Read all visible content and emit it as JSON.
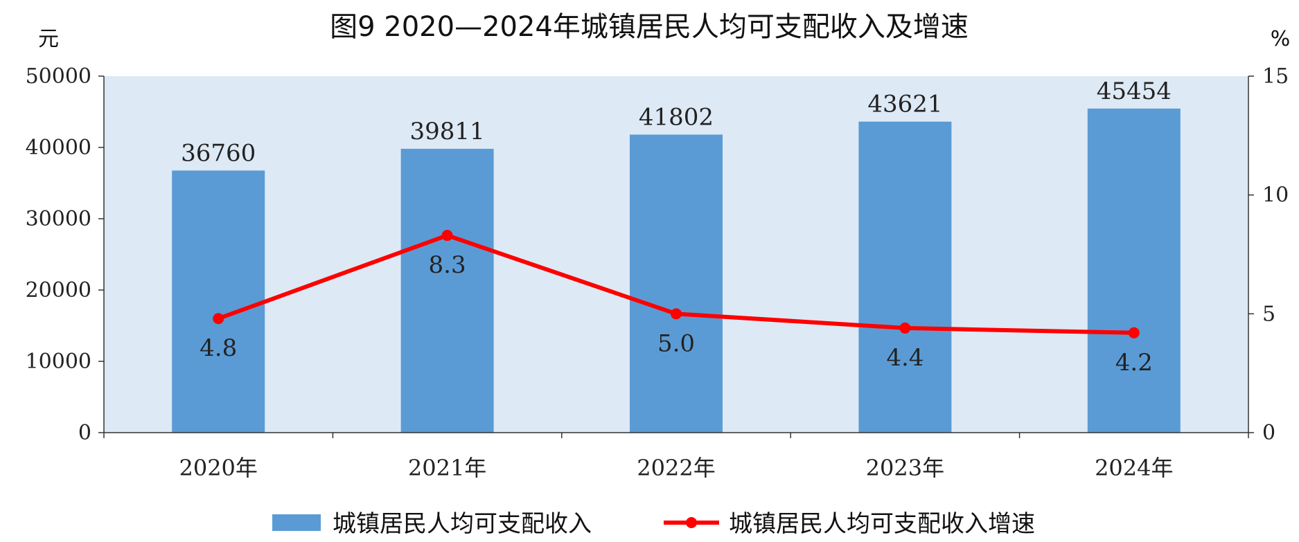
{
  "chart_data": {
    "type": "bar",
    "title": "图9  2020—2024年城镇居民人均可支配收入及增速",
    "y_unit_left": "元",
    "y_unit_right": "%",
    "categories": [
      "2020年",
      "2021年",
      "2022年",
      "2023年",
      "2024年"
    ],
    "series": [
      {
        "name": "城镇居民人均可支配收入",
        "type": "bar",
        "axis": "left",
        "color": "#5b9bd5",
        "values": [
          36760,
          39811,
          41802,
          43621,
          45454
        ],
        "labels": [
          "36760",
          "39811",
          "41802",
          "43621",
          "45454"
        ]
      },
      {
        "name": "城镇居民人均可支配收入增速",
        "type": "line",
        "axis": "right",
        "color": "#ff0000",
        "values": [
          4.8,
          8.3,
          5.0,
          4.4,
          4.2
        ],
        "labels": [
          "4.8",
          "8.3",
          "5.0",
          "4.4",
          "4.2"
        ]
      }
    ],
    "ylim_left": [
      0,
      50000
    ],
    "yticks_left": [
      "0",
      "10000",
      "20000",
      "30000",
      "40000",
      "50000"
    ],
    "ylim_right": [
      0,
      15
    ],
    "yticks_right": [
      "0",
      "5",
      "10",
      "15"
    ],
    "plot_background": "#dde9f5",
    "grid": false,
    "legend_position": "bottom"
  }
}
